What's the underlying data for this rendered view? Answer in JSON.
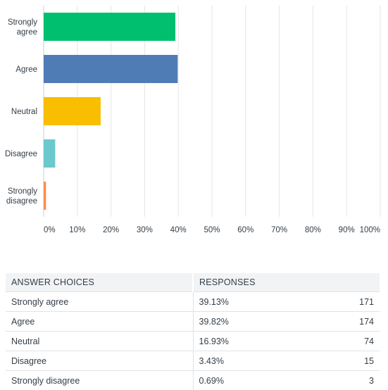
{
  "chart_data": {
    "type": "bar",
    "orientation": "horizontal",
    "categories": [
      "Strongly agree",
      "Agree",
      "Neutral",
      "Disagree",
      "Strongly disagree"
    ],
    "category_label_lines": [
      [
        "Strongly",
        "agree"
      ],
      [
        "Agree"
      ],
      [
        "Neutral"
      ],
      [
        "Disagree"
      ],
      [
        "Strongly",
        "disagree"
      ]
    ],
    "values": [
      39.13,
      39.82,
      16.93,
      3.43,
      0.69
    ],
    "colors": [
      "#00bf6f",
      "#507cb6",
      "#f9be00",
      "#6bc8cd",
      "#ff8b4f"
    ],
    "xlim": [
      0,
      100
    ],
    "xticks": [
      "0%",
      "10%",
      "20%",
      "30%",
      "40%",
      "50%",
      "60%",
      "70%",
      "80%",
      "90%",
      "100%"
    ],
    "grid": true
  },
  "table": {
    "headers": {
      "choice": "ANSWER CHOICES",
      "responses": "RESPONSES"
    },
    "rows": [
      {
        "choice": "Strongly agree",
        "percent": "39.13%",
        "count": "171"
      },
      {
        "choice": "Agree",
        "percent": "39.82%",
        "count": "174"
      },
      {
        "choice": "Neutral",
        "percent": "16.93%",
        "count": "74"
      },
      {
        "choice": "Disagree",
        "percent": "3.43%",
        "count": "15"
      },
      {
        "choice": "Strongly disagree",
        "percent": "0.69%",
        "count": "3"
      }
    ]
  }
}
